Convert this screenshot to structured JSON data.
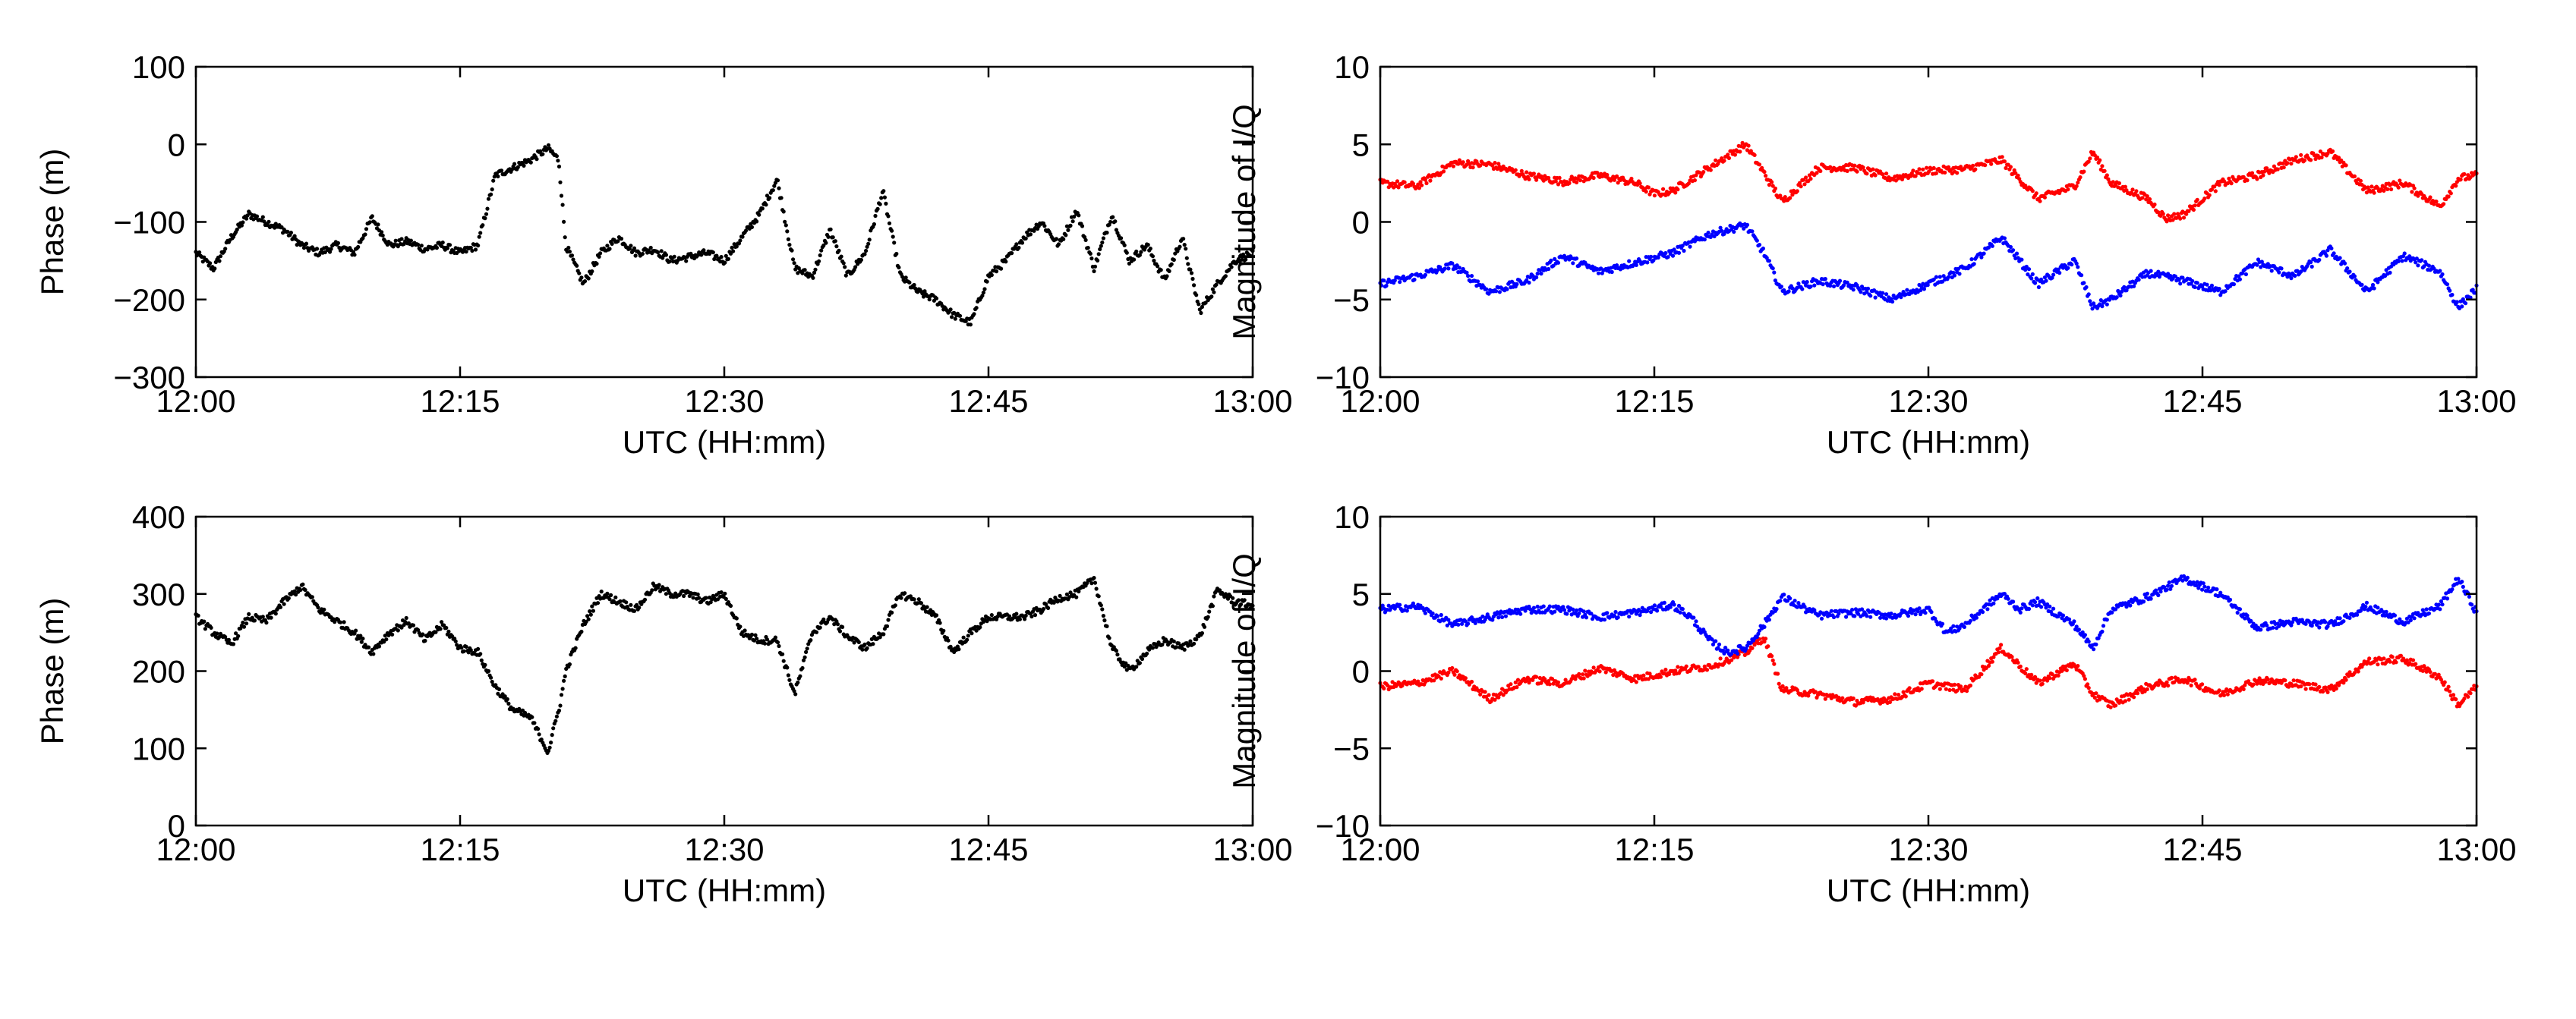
{
  "chart_data": [
    {
      "id": "top-left",
      "type": "scatter",
      "xlabel": "UTC (HH:mm)",
      "ylabel": "Phase (m)",
      "xlim": [
        0,
        60
      ],
      "ylim": [
        -300,
        100
      ],
      "xticks": [
        0,
        15,
        30,
        45,
        60
      ],
      "xtick_labels": [
        "12:00",
        "12:15",
        "12:30",
        "12:45",
        "13:00"
      ],
      "yticks": [
        -300,
        -200,
        -100,
        0,
        100
      ],
      "ytick_labels": [
        "−300",
        "−200",
        "−100",
        "0",
        "100"
      ],
      "series": [
        {
          "name": "phase",
          "color": "#000000",
          "x": [
            0,
            1,
            2,
            3,
            4,
            5,
            6,
            7,
            8,
            9,
            10,
            11,
            12,
            13,
            14,
            15,
            16,
            17,
            18,
            19,
            20,
            20.6,
            21,
            22,
            23,
            24,
            25,
            26,
            27,
            28,
            29,
            30,
            31,
            32,
            33,
            34,
            35,
            36,
            37,
            38,
            39,
            40,
            41,
            42,
            43,
            44,
            45,
            46,
            47,
            48,
            49,
            50,
            51,
            52,
            53,
            54,
            55,
            56,
            57,
            58,
            59,
            60
          ],
          "y": [
            -140,
            -160,
            -120,
            -90,
            -100,
            -110,
            -130,
            -140,
            -130,
            -140,
            -95,
            -130,
            -125,
            -135,
            -130,
            -140,
            -130,
            -40,
            -30,
            -20,
            -5,
            -20,
            -130,
            -180,
            -140,
            -120,
            -140,
            -135,
            -150,
            -145,
            -140,
            -150,
            -120,
            -90,
            -45,
            -160,
            -170,
            -110,
            -170,
            -140,
            -60,
            -170,
            -190,
            -200,
            -220,
            -230,
            -170,
            -150,
            -120,
            -100,
            -130,
            -85,
            -160,
            -90,
            -150,
            -130,
            -175,
            -120,
            -215,
            -180,
            -150,
            -140
          ]
        }
      ]
    },
    {
      "id": "top-right",
      "type": "scatter",
      "xlabel": "UTC (HH:mm)",
      "ylabel": "Magnitude of I/Q",
      "xlim": [
        0,
        60
      ],
      "ylim": [
        -10,
        10
      ],
      "xticks": [
        0,
        15,
        30,
        45,
        60
      ],
      "xtick_labels": [
        "12:00",
        "12:15",
        "12:30",
        "12:45",
        "13:00"
      ],
      "yticks": [
        -10,
        -5,
        0,
        5,
        10
      ],
      "ytick_labels": [
        "−10",
        "−5",
        "0",
        "5",
        "10"
      ],
      "series": [
        {
          "name": "I",
          "color": "#ff0000",
          "x": [
            0,
            2,
            4,
            6,
            8,
            10,
            12,
            14,
            15,
            16,
            18,
            20,
            22,
            24,
            26,
            28,
            30,
            32,
            34,
            36,
            38,
            39,
            40,
            42,
            43,
            44,
            46,
            48,
            50,
            52,
            54,
            56,
            58,
            59,
            60
          ],
          "y": [
            2.5,
            2.3,
            3.8,
            3.7,
            3.0,
            2.6,
            3.0,
            2.5,
            1.8,
            2.0,
            3.5,
            5.0,
            1.3,
            3.5,
            3.5,
            2.8,
            3.3,
            3.4,
            4.0,
            1.5,
            2.3,
            4.5,
            2.5,
            1.5,
            0.2,
            0.5,
            2.5,
            3.0,
            4.0,
            4.5,
            2.0,
            2.5,
            1.0,
            2.8,
            3.0
          ]
        },
        {
          "name": "Q",
          "color": "#0000ff",
          "x": [
            0,
            2,
            4,
            6,
            8,
            10,
            12,
            14,
            16,
            18,
            19,
            20,
            21,
            22,
            24,
            26,
            28,
            30,
            32,
            34,
            36,
            38,
            39,
            40,
            42,
            44,
            46,
            48,
            50,
            52,
            54,
            56,
            58,
            59,
            60
          ],
          "y": [
            -4.0,
            -3.5,
            -2.8,
            -4.5,
            -3.8,
            -2.2,
            -3.2,
            -2.6,
            -2.0,
            -0.8,
            -0.5,
            -0.2,
            -2.0,
            -4.5,
            -3.8,
            -4.2,
            -5.0,
            -4.0,
            -3.0,
            -1.0,
            -4.0,
            -2.5,
            -5.5,
            -5.0,
            -3.3,
            -3.8,
            -4.5,
            -2.6,
            -3.5,
            -1.8,
            -4.5,
            -2.2,
            -3.2,
            -5.5,
            -4.3
          ]
        }
      ]
    },
    {
      "id": "bottom-left",
      "type": "scatter",
      "xlabel": "UTC (HH:mm)",
      "ylabel": "Phase (m)",
      "xlim": [
        0,
        60
      ],
      "ylim": [
        0,
        400
      ],
      "xticks": [
        0,
        15,
        30,
        45,
        60
      ],
      "xtick_labels": [
        "12:00",
        "12:15",
        "12:30",
        "12:45",
        "13:00"
      ],
      "yticks": [
        0,
        100,
        200,
        300,
        400
      ],
      "ytick_labels": [
        "0",
        "100",
        "200",
        "300",
        "400"
      ],
      "series": [
        {
          "name": "phase",
          "color": "#000000",
          "x": [
            0,
            1,
            2,
            3,
            4,
            5,
            6,
            7,
            8,
            9,
            10,
            11,
            12,
            13,
            14,
            15,
            16,
            17,
            18,
            19,
            20,
            20.7,
            21,
            22,
            23,
            24,
            25,
            26,
            27,
            28,
            29,
            30,
            31,
            32,
            33,
            34,
            35,
            36,
            37,
            38,
            39,
            40,
            41,
            42,
            43,
            44,
            45,
            46,
            47,
            48,
            49,
            50,
            51,
            52,
            53,
            54,
            55,
            56,
            57,
            58,
            59,
            60
          ],
          "y": [
            270,
            250,
            235,
            270,
            265,
            290,
            310,
            280,
            265,
            250,
            225,
            250,
            265,
            240,
            260,
            230,
            225,
            180,
            150,
            140,
            95,
            160,
            200,
            260,
            300,
            290,
            280,
            310,
            300,
            300,
            290,
            300,
            250,
            240,
            240,
            170,
            250,
            270,
            245,
            230,
            250,
            300,
            290,
            270,
            225,
            250,
            270,
            270,
            270,
            280,
            295,
            300,
            320,
            230,
            200,
            225,
            240,
            230,
            245,
            305,
            290,
            285
          ]
        }
      ]
    },
    {
      "id": "bottom-right",
      "type": "scatter",
      "xlabel": "UTC (HH:mm)",
      "ylabel": "Magnitude of I/Q",
      "xlim": [
        0,
        60
      ],
      "ylim": [
        -10,
        10
      ],
      "xticks": [
        0,
        15,
        30,
        45,
        60
      ],
      "xtick_labels": [
        "12:00",
        "12:15",
        "12:30",
        "12:45",
        "13:00"
      ],
      "yticks": [
        -10,
        -5,
        0,
        5,
        10
      ],
      "ytick_labels": [
        "−10",
        "−5",
        "0",
        "5",
        "10"
      ],
      "series": [
        {
          "name": "I",
          "color": "#ff0000",
          "x": [
            0,
            2,
            4,
            6,
            8,
            10,
            12,
            14,
            16,
            18,
            20,
            21,
            22,
            24,
            26,
            28,
            30,
            32,
            34,
            36,
            38,
            39,
            40,
            42,
            44,
            46,
            48,
            50,
            52,
            54,
            56,
            58,
            59,
            60
          ],
          "y": [
            -1.0,
            -0.8,
            0.0,
            -1.8,
            -0.5,
            -0.8,
            0.2,
            -0.5,
            0.0,
            0.3,
            1.2,
            2.2,
            -1.2,
            -1.5,
            -2.0,
            -1.8,
            -0.8,
            -1.2,
            1.5,
            -0.8,
            0.5,
            -1.5,
            -2.2,
            -1.0,
            -0.5,
            -1.5,
            -0.6,
            -0.8,
            -1.2,
            0.6,
            0.8,
            -0.4,
            -2.2,
            -1.0
          ]
        },
        {
          "name": "Q",
          "color": "#0000ff",
          "x": [
            0,
            2,
            4,
            6,
            8,
            10,
            12,
            14,
            16,
            17,
            18,
            19,
            20,
            21,
            22,
            24,
            26,
            28,
            30,
            31,
            32,
            34,
            35,
            36,
            38,
            39,
            40,
            42,
            44,
            46,
            48,
            50,
            52,
            54,
            56,
            58,
            59,
            60
          ],
          "y": [
            4.0,
            4.2,
            3.0,
            3.5,
            4.0,
            4.0,
            3.5,
            3.8,
            4.3,
            3.5,
            2.0,
            1.2,
            1.5,
            3.0,
            4.8,
            3.6,
            3.8,
            3.6,
            4.0,
            2.5,
            3.0,
            5.0,
            4.0,
            4.5,
            3.0,
            1.5,
            4.0,
            4.8,
            6.0,
            5.0,
            2.8,
            3.2,
            3.0,
            4.2,
            3.2,
            4.2,
            6.0,
            3.8
          ]
        }
      ]
    }
  ]
}
